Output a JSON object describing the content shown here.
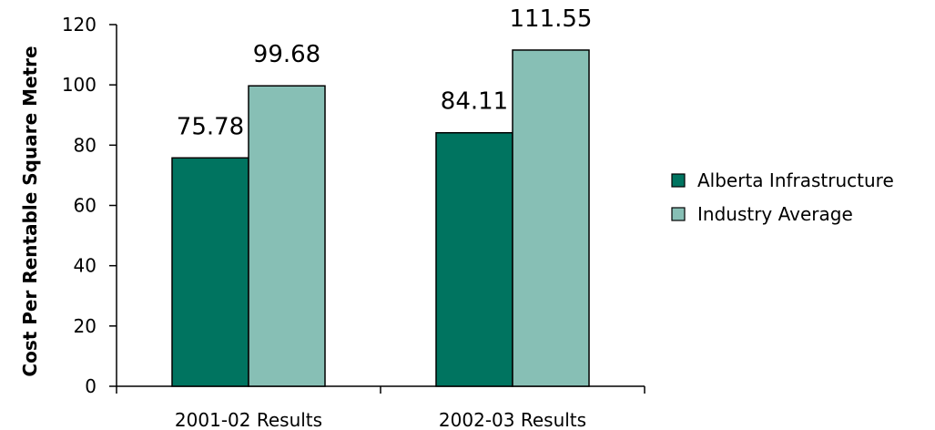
{
  "chart_data": {
    "type": "bar",
    "title": "",
    "xlabel": "",
    "ylabel": "Cost Per Rentable Square Metre",
    "categories": [
      "2001-02 Results",
      "2002-03 Results"
    ],
    "series": [
      {
        "name": "Alberta Infrastructure",
        "values": [
          75.78,
          84.11
        ],
        "color": "#007460"
      },
      {
        "name": "Industry Average",
        "values": [
          99.68,
          111.55
        ],
        "color": "#87bfb5"
      }
    ],
    "data_labels": [
      [
        "75.78",
        "84.11"
      ],
      [
        "99.68",
        "111.55"
      ]
    ],
    "ylim": [
      0,
      120
    ],
    "yticks": [
      0,
      20,
      40,
      60,
      80,
      100,
      120
    ],
    "grid": false,
    "legend_position": "right"
  }
}
